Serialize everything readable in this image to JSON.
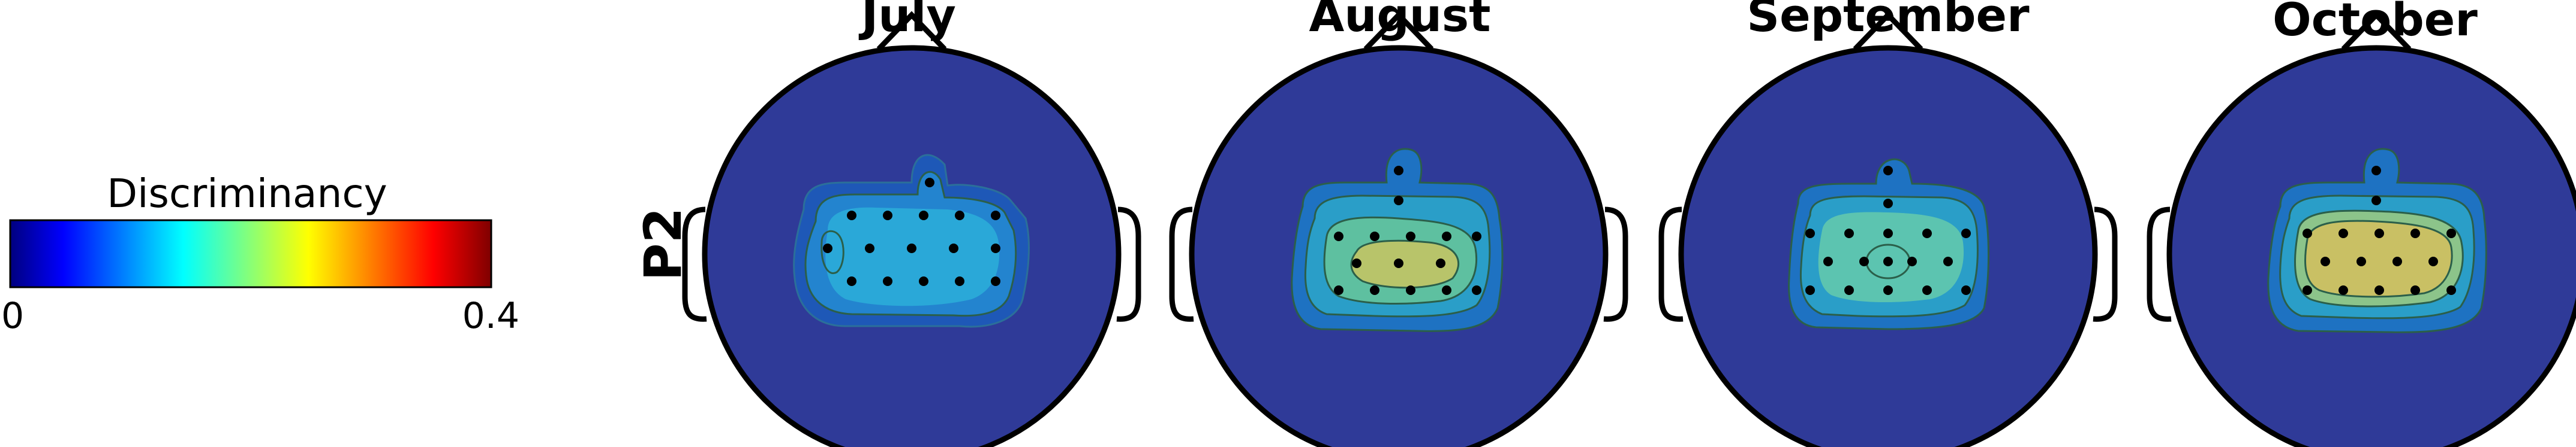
{
  "colorbar": {
    "title": "Discriminancy",
    "min_label": "0",
    "max_label": "0.4",
    "range": [
      0,
      0.4
    ],
    "colormap": [
      "#00007f",
      "#0000ff",
      "#00ffff",
      "#ffff00",
      "#ff0000",
      "#7f0000"
    ]
  },
  "row_label": "P2",
  "panels": [
    {
      "month": "July",
      "peak_value": 0.17,
      "peak_color": "#2aa8d8"
    },
    {
      "month": "August",
      "peak_value": 0.21,
      "peak_color": "#b8c46a"
    },
    {
      "month": "September",
      "peak_value": 0.19,
      "peak_color": "#5cc4b0"
    },
    {
      "month": "October",
      "peak_value": 0.22,
      "peak_color": "#c9c064"
    }
  ],
  "colors": {
    "background_scalp": "#2f3a98",
    "head_outline": "#000000",
    "contour_line": "#2b5f4a"
  }
}
